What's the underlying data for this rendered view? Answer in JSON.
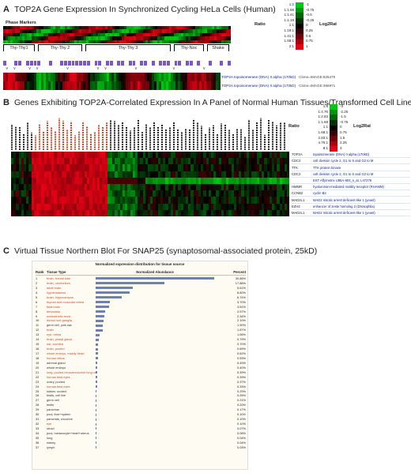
{
  "panels": {
    "a": {
      "letter": "A",
      "title": "TOP2A Gene Expression In Synchronized Cycling HeLa Cells (Human)",
      "markers_label": "Phase Markers",
      "phases": [
        "Thy-Thy1",
        "Thy-Thy 2",
        "Thy-Thy 3",
        "Thy-Noc",
        "Shake"
      ],
      "genes": [
        {
          "name": "TOP2A topoisomerase (DNA) II alpha (170kD)",
          "clone": "Clone=IMAGE:825470"
        },
        {
          "name": "TOP2A topoisomerase (DNA) II alpha (170kD)",
          "clone": "Clone=IMAGE:366971"
        }
      ],
      "legend": {
        "ratio_title": "Ratio",
        "log_title": "Log2Rat",
        "ratios": [
          "1:2",
          "1:1.68",
          "1:1.41",
          "1:1.19",
          "1:1",
          "1.19:1",
          "1.41:1",
          "1.68:1",
          "2:1"
        ],
        "logs": [
          "-1",
          "-0.75",
          "-0.5",
          "-0.25",
          "0",
          "0.25",
          "0.5",
          "0.75",
          "1"
        ]
      }
    },
    "b": {
      "letter": "B",
      "title": "Genes Exhibiting TOP2A-Correlated Expression In A Panel of Normal Human Tissues/Transformed Cell Lines",
      "genes": [
        {
          "symbol": "TOP2A",
          "desc": "topoisomerase (DNA) II alpha (170kD)"
        },
        {
          "symbol": "CDC2",
          "desc": "cell division cycle 2, G1 to S and G2 to M"
        },
        {
          "symbol": "TTK",
          "desc": "TTK protein kinase"
        },
        {
          "symbol": "CDC2",
          "desc": "cell division cycle 2, G1 to S and G2 to M"
        },
        {
          "symbol": "",
          "desc": "EST Affymetrix U95A-904_s_at, L47276"
        },
        {
          "symbol": "HMMR",
          "desc": "hyaluronan-mediated motility receptor (RHAMM)"
        },
        {
          "symbol": "CCNB2",
          "desc": "cyclin B2"
        },
        {
          "symbol": "MAD2L1",
          "desc": "MAD2 mitotic arrest deficient-like 1 (yeast)"
        },
        {
          "symbol": "EZH2",
          "desc": "enhancer of zeste homolog 2 (Drosophila)"
        },
        {
          "symbol": "MAD2L1",
          "desc": "MAD2 mitotic arrest deficient-like 1 (yeast)"
        }
      ],
      "legend": {
        "ratio_title": "Ratio",
        "log_title": "Log2Rat",
        "ratios": [
          "1:8",
          "1:4.76",
          "1:2.83",
          "1:1.68",
          "1:1",
          "1.68:1",
          "2.83:1",
          "4.76:1",
          "8:1"
        ],
        "logs": [
          "-3",
          "-2.25",
          "-1.5",
          "-0.75",
          "0",
          "0.75",
          "1.5",
          "2.25",
          "3"
        ]
      }
    },
    "c": {
      "letter": "C",
      "title": "Virtual Tissue Northern Blot For SNAP25 (synaptosomal-associated protein, 25kD)",
      "caption": "Normalized expression distribution for tissue source",
      "headers": {
        "rank": "Rank",
        "tissue": "Tissue Type",
        "abundance": "Normalized Abundance",
        "percent": "Percent"
      },
      "rows": [
        {
          "rank": "1",
          "tissue": "brain, frontal lobe",
          "percent": "30.86%",
          "value": 30.86,
          "red": true
        },
        {
          "rank": "2",
          "tissue": "brain, cerebellum",
          "percent": "17.88%",
          "value": 17.88,
          "red": true
        },
        {
          "rank": "3",
          "tissue": "adult brain",
          "percent": "9.61%",
          "value": 9.61,
          "red": true
        },
        {
          "rank": "4",
          "tissue": "hypothalamus",
          "percent": "8.80%",
          "value": 8.8,
          "red": true
        },
        {
          "rank": "5",
          "tissue": "brain, hippocampus",
          "percent": "6.74%",
          "value": 6.74,
          "red": true
        },
        {
          "rank": "6",
          "tissue": "thyroid and muscular retina",
          "percent": "3.70%",
          "value": 3.7,
          "red": true
        },
        {
          "rank": "7",
          "tissue": "fetal brain",
          "percent": "3.51%",
          "value": 3.51,
          "red": true
        },
        {
          "rank": "8",
          "tissue": "amygdala",
          "percent": "2.57%",
          "value": 2.57,
          "red": true
        },
        {
          "rank": "9",
          "tissue": "sympathetic trunk",
          "percent": "2.34%",
          "value": 2.34,
          "red": true
        },
        {
          "rank": "10",
          "tissue": "dorsal root ganglia",
          "percent": "2.10%",
          "value": 2.1,
          "red": true
        },
        {
          "rank": "11",
          "tissue": "germ cell, yolk sac",
          "percent": "1.90%",
          "value": 1.9,
          "red": false
        },
        {
          "rank": "12",
          "tissue": "brain",
          "percent": "1.87%",
          "value": 1.87,
          "red": true
        },
        {
          "rank": "13",
          "tissue": "eye, retina",
          "percent": "1.06%",
          "value": 1.06,
          "red": true
        },
        {
          "rank": "14",
          "tissue": "brain, pineal gland",
          "percent": "0.79%",
          "value": 0.79,
          "red": true
        },
        {
          "rank": "15",
          "tissue": "ear, cochlea",
          "percent": "0.70%",
          "value": 0.7,
          "red": true
        },
        {
          "rank": "16",
          "tissue": "brain, pooled",
          "percent": "0.69%",
          "value": 0.69,
          "red": true
        },
        {
          "rank": "17",
          "tissue": "whole embryo, mainly head",
          "percent": "0.62%",
          "value": 0.62,
          "red": true
        },
        {
          "rank": "18",
          "tissue": "human retina",
          "percent": "0.53%",
          "value": 0.53,
          "red": true
        },
        {
          "rank": "19",
          "tissue": "adrenal gland",
          "percent": "0.49%",
          "value": 0.49,
          "red": false
        },
        {
          "rank": "20",
          "tissue": "whole embryo",
          "percent": "0.40%",
          "value": 0.4,
          "red": false
        },
        {
          "rank": "21",
          "tissue": "lung, pooled neuroendocrine lung carcinoids",
          "percent": "0.39%",
          "value": 0.39,
          "red": true
        },
        {
          "rank": "22",
          "tissue": "human fetal eyes",
          "percent": "0.39%",
          "value": 0.39,
          "red": true
        },
        {
          "rank": "23",
          "tissue": "ovary, pooled",
          "percent": "0.37%",
          "value": 0.37,
          "red": false
        },
        {
          "rank": "24",
          "tissue": "human fetal eyes",
          "percent": "0.33%",
          "value": 0.33,
          "red": true
        },
        {
          "rank": "25",
          "tissue": "kidney, pooled",
          "percent": "0.29%",
          "value": 0.29,
          "red": false
        },
        {
          "rank": "26",
          "tissue": "testis, cell line",
          "percent": "0.25%",
          "value": 0.25,
          "red": false
        },
        {
          "rank": "27",
          "tissue": "germ cell",
          "percent": "0.21%",
          "value": 0.21,
          "red": false
        },
        {
          "rank": "28",
          "tissue": "testis",
          "percent": "0.20%",
          "value": 0.2,
          "red": false
        },
        {
          "rank": "29",
          "tissue": "pancreas",
          "percent": "0.17%",
          "value": 0.17,
          "red": false
        },
        {
          "rank": "30",
          "tissue": "pool, liver+spleen",
          "percent": "0.10%",
          "value": 0.1,
          "red": false
        },
        {
          "rank": "31",
          "tissue": "pancreas, exocrine",
          "percent": "0.10%",
          "value": 0.1,
          "red": false
        },
        {
          "rank": "32",
          "tissue": "eye",
          "percent": "0.10%",
          "value": 0.1,
          "red": true
        },
        {
          "rank": "33",
          "tissue": "stroid",
          "percent": "0.07%",
          "value": 0.07,
          "red": false
        },
        {
          "rank": "34",
          "tissue": "pool, melanocyte+heart+uterus",
          "percent": "0.06%",
          "value": 0.06,
          "red": false
        },
        {
          "rank": "35",
          "tissue": "lung",
          "percent": "0.04%",
          "value": 0.04,
          "red": false
        },
        {
          "rank": "36",
          "tissue": "kidney",
          "percent": "0.04%",
          "value": 0.04,
          "red": false
        },
        {
          "rank": "37",
          "tissue": "lymph",
          "percent": "0.03%",
          "value": 0.03,
          "red": false
        }
      ]
    }
  },
  "colors": {
    "heat_green": "#1ea84a",
    "heat_red": "#e02020",
    "heat_black": "#000000",
    "purple": "#7a57c9",
    "gene_link": "#0a1f8f",
    "tissue_red": "#d14a2a",
    "bar": "#6b7fb8"
  }
}
